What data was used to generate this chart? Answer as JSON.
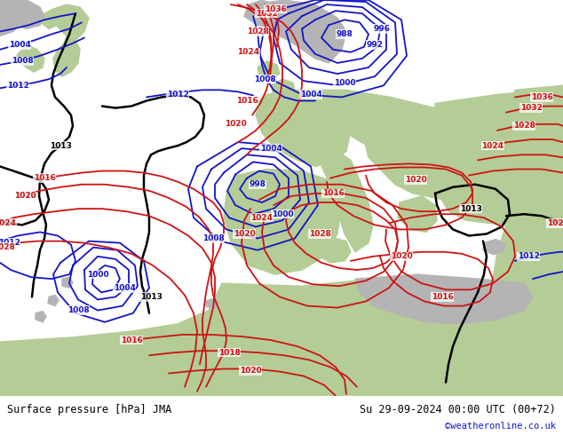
{
  "title_left": "Surface pressure [hPa] JMA",
  "title_right": "Su 29-09-2024 00:00 UTC (00+72)",
  "copyright": "©weatheronline.co.uk",
  "figsize": [
    6.34,
    4.9
  ],
  "dpi": 100,
  "ocean_color": "#c8d8e8",
  "land_green": "#b4cc96",
  "land_gray": "#b4b4b4",
  "black_iso": "#000000",
  "blue_iso": "#1414c8",
  "red_iso": "#cc1414",
  "bottom_bg": "#e0e0e0"
}
